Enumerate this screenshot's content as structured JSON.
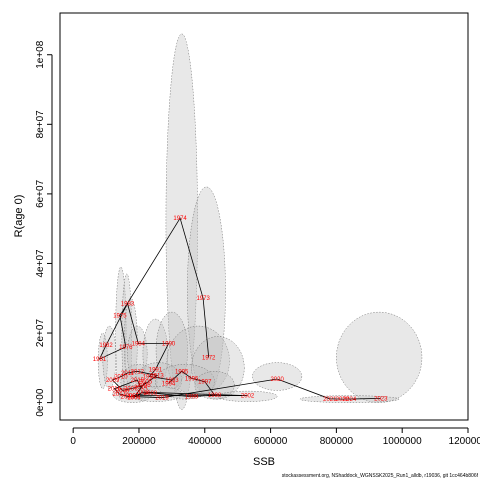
{
  "chart_data": {
    "type": "scatter",
    "title": "",
    "xlabel": "SSB",
    "ylabel": "R(age 0)",
    "xlim": [
      -40000,
      1200000
    ],
    "ylim": [
      -5000000,
      112000000
    ],
    "xticks": [
      0,
      200000,
      400000,
      600000,
      800000,
      1000000,
      1200000
    ],
    "xtick_labels": [
      "0",
      "200000",
      "400000",
      "600000",
      "800000",
      "1000000",
      "1200000"
    ],
    "yticks": [
      0,
      20000000,
      40000000,
      60000000,
      80000000,
      100000000
    ],
    "ytick_labels": [
      "0e+00",
      "2e+07",
      "4e+07",
      "6e+07",
      "8e+07",
      "1e+08"
    ],
    "grid": false,
    "legend": "none",
    "colors": {
      "points": "#ff0000",
      "path": "#000000",
      "ellipse_fill": "#bdbdbd",
      "ellipse_stroke": "#6b6b6b"
    },
    "points": [
      {
        "year": "1973",
        "x": 395000,
        "y": 30000000
      },
      {
        "year": "1974",
        "x": 325000,
        "y": 53000000
      },
      {
        "year": "1972",
        "x": 412000,
        "y": 13000000
      },
      {
        "year": "1981",
        "x": 80000,
        "y": 12500000
      },
      {
        "year": "1982",
        "x": 100000,
        "y": 16500000
      },
      {
        "year": "1983",
        "x": 165000,
        "y": 28500000
      },
      {
        "year": "1984",
        "x": 198000,
        "y": 17000000
      },
      {
        "year": "1975",
        "x": 142000,
        "y": 25000000
      },
      {
        "year": "1976",
        "x": 160000,
        "y": 16000000
      },
      {
        "year": "1990",
        "x": 290000,
        "y": 17000000
      },
      {
        "year": "1991",
        "x": 250000,
        "y": 9500000
      },
      {
        "year": "1992",
        "x": 232000,
        "y": 7500000
      },
      {
        "year": "1993",
        "x": 300000,
        "y": 6500000
      },
      {
        "year": "1994",
        "x": 290000,
        "y": 5500000
      },
      {
        "year": "1995",
        "x": 330000,
        "y": 9000000
      },
      {
        "year": "1996",
        "x": 360000,
        "y": 7000000
      },
      {
        "year": "1997",
        "x": 400000,
        "y": 6000000
      },
      {
        "year": "1998",
        "x": 430000,
        "y": 2200000
      },
      {
        "year": "1999",
        "x": 360000,
        "y": 1700000
      },
      {
        "year": "2000",
        "x": 235000,
        "y": 2800000
      },
      {
        "year": "2001",
        "x": 180000,
        "y": 2000000
      },
      {
        "year": "2002",
        "x": 530000,
        "y": 2000000
      },
      {
        "year": "2003",
        "x": 210000,
        "y": 3000000
      },
      {
        "year": "2004",
        "x": 185000,
        "y": 1500000
      },
      {
        "year": "2005",
        "x": 220000,
        "y": 6000000
      },
      {
        "year": "2006",
        "x": 215000,
        "y": 5000000
      },
      {
        "year": "2007",
        "x": 175000,
        "y": 4000000
      },
      {
        "year": "2008",
        "x": 150000,
        "y": 3500000
      },
      {
        "year": "2009",
        "x": 120000,
        "y": 6500000
      },
      {
        "year": "2010",
        "x": 145000,
        "y": 7500000
      },
      {
        "year": "2011",
        "x": 165000,
        "y": 8500000
      },
      {
        "year": "2012",
        "x": 195000,
        "y": 9000000
      },
      {
        "year": "2013",
        "x": 255000,
        "y": 7800000
      },
      {
        "year": "2014",
        "x": 205000,
        "y": 4500000
      },
      {
        "year": "2015",
        "x": 195000,
        "y": 6500000
      },
      {
        "year": "2016",
        "x": 125000,
        "y": 4000000
      },
      {
        "year": "2017",
        "x": 140000,
        "y": 2500000
      },
      {
        "year": "2018",
        "x": 165000,
        "y": 1800000
      },
      {
        "year": "2019",
        "x": 270000,
        "y": 1400000
      },
      {
        "year": "2020",
        "x": 620000,
        "y": 6800000
      },
      {
        "year": "2021",
        "x": 780000,
        "y": 1100000
      },
      {
        "year": "2022",
        "x": 818000,
        "y": 1000000
      },
      {
        "year": "2023",
        "x": 935000,
        "y": 1200000
      },
      {
        "year": "2024",
        "x": 840000,
        "y": 1000000
      }
    ],
    "ellipses": [
      {
        "cx": 330000,
        "cy": 52000000,
        "rx": 48000,
        "ry": 54000000
      },
      {
        "cx": 405000,
        "cy": 32000000,
        "rx": 58000,
        "ry": 30000000
      },
      {
        "cx": 145000,
        "cy": 20000000,
        "rx": 16000,
        "ry": 19000000
      },
      {
        "cx": 163000,
        "cy": 19000000,
        "rx": 15000,
        "ry": 18000000
      },
      {
        "cx": 175000,
        "cy": 17000000,
        "rx": 20000,
        "ry": 13000000
      },
      {
        "cx": 195000,
        "cy": 14000000,
        "rx": 30000,
        "ry": 8000000
      },
      {
        "cx": 250000,
        "cy": 14000000,
        "rx": 38000,
        "ry": 10000000
      },
      {
        "cx": 300000,
        "cy": 15000000,
        "rx": 48000,
        "ry": 11000000
      },
      {
        "cx": 380000,
        "cy": 12000000,
        "rx": 95000,
        "ry": 10000000
      },
      {
        "cx": 440000,
        "cy": 10000000,
        "rx": 80000,
        "ry": 9000000
      },
      {
        "cx": 90000,
        "cy": 12000000,
        "rx": 14000,
        "ry": 8000000
      },
      {
        "cx": 110000,
        "cy": 13000000,
        "rx": 20000,
        "ry": 9000000
      },
      {
        "cx": 200000,
        "cy": 6000000,
        "rx": 55000,
        "ry": 5000000
      },
      {
        "cx": 260000,
        "cy": 6500000,
        "rx": 70000,
        "ry": 5000000
      },
      {
        "cx": 340000,
        "cy": 6000000,
        "rx": 90000,
        "ry": 5000000
      },
      {
        "cx": 430000,
        "cy": 5000000,
        "rx": 60000,
        "ry": 4000000
      },
      {
        "cx": 620000,
        "cy": 7500000,
        "rx": 75000,
        "ry": 4000000
      },
      {
        "cx": 930000,
        "cy": 13000000,
        "rx": 130000,
        "ry": 13000000
      },
      {
        "cx": 840000,
        "cy": 1000000,
        "rx": 150000,
        "ry": 1000000
      },
      {
        "cx": 530000,
        "cy": 1800000,
        "rx": 90000,
        "ry": 1500000
      },
      {
        "cx": 180000,
        "cy": 2500000,
        "rx": 60000,
        "ry": 2500000
      },
      {
        "cx": 250000,
        "cy": 2500000,
        "rx": 80000,
        "ry": 2200000
      }
    ],
    "path_order": [
      "1972",
      "1973",
      "1974",
      "1975",
      "1976",
      "1981",
      "1982",
      "1983",
      "1984",
      "1990",
      "1991",
      "1992",
      "1993",
      "1994",
      "1995",
      "1996",
      "1997",
      "1998",
      "1999",
      "2000",
      "2001",
      "2002",
      "2003",
      "2004",
      "2005",
      "2006",
      "2007",
      "2008",
      "2009",
      "2010",
      "2011",
      "2012",
      "2013",
      "2014",
      "2015",
      "2016",
      "2017",
      "2018",
      "2019",
      "2020",
      "2021",
      "2022",
      "2023",
      "2024"
    ]
  },
  "footnote": "stockassessment.org, NShaddock_WGNSSK2025_Run1_alldb, r19036, git 1cc464b806f"
}
